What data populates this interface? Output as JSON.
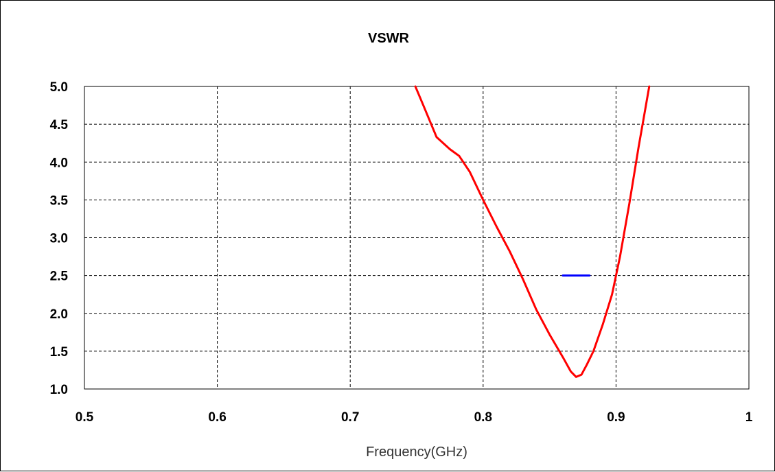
{
  "chart_data": {
    "type": "line",
    "title": "VSWR",
    "xlabel": "Frequency(GHz)",
    "ylabel": "",
    "xlim": [
      0.5,
      1.0
    ],
    "ylim": [
      1.0,
      5.0
    ],
    "x_ticks": [
      0.5,
      0.6,
      0.7,
      0.8,
      0.9,
      1.0
    ],
    "x_tick_labels": [
      "0.5",
      "0.6",
      "0.7",
      "0.8",
      "0.9",
      "1"
    ],
    "y_ticks": [
      1.0,
      1.5,
      2.0,
      2.5,
      3.0,
      3.5,
      4.0,
      4.5,
      5.0
    ],
    "y_tick_labels": [
      "1.0",
      "1.5",
      "2.0",
      "2.5",
      "3.0",
      "3.5",
      "4.0",
      "4.5",
      "5.0"
    ],
    "grid": true,
    "grid_style": "dashed",
    "series": [
      {
        "color": "#ff0000",
        "x": [
          0.749,
          0.755,
          0.765,
          0.775,
          0.782,
          0.79,
          0.8,
          0.81,
          0.82,
          0.83,
          0.84,
          0.85,
          0.86,
          0.866,
          0.87,
          0.874,
          0.878,
          0.883,
          0.89,
          0.897,
          0.903,
          0.91,
          0.917,
          0.922,
          0.925
        ],
        "y": [
          5.0,
          4.75,
          4.33,
          4.17,
          4.08,
          3.87,
          3.5,
          3.15,
          2.82,
          2.45,
          2.05,
          1.72,
          1.42,
          1.23,
          1.16,
          1.19,
          1.32,
          1.5,
          1.85,
          2.25,
          2.75,
          3.45,
          4.2,
          4.7,
          5.0
        ]
      },
      {
        "color": "#0000ff",
        "x": [
          0.86,
          0.88
        ],
        "y": [
          2.5,
          2.5
        ]
      }
    ]
  }
}
